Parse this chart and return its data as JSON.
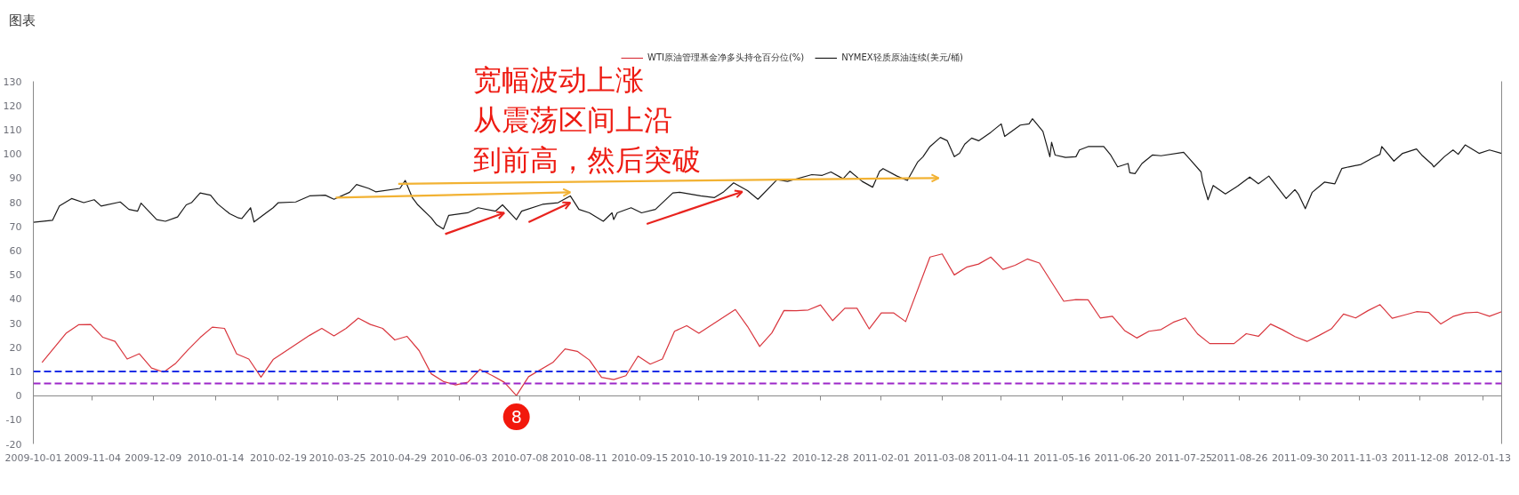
{
  "chart_data": {
    "type": "line",
    "title": "图表",
    "annotations": [
      "宽幅波动上涨",
      "从震荡区间上沿",
      "到前高，然后突破",
      {
        "text": "8",
        "x": "2010-07-06",
        "y": 0
      }
    ],
    "xlim": [
      "2009-10-01",
      "2012-01-24"
    ],
    "xticks": [
      "2009-10-01",
      "2009-11-04",
      "2009-12-09",
      "2010-01-14",
      "2010-02-19",
      "2010-03-25",
      "2010-04-29",
      "2010-06-03",
      "2010-07-08",
      "2010-08-11",
      "2010-09-15",
      "2010-10-19",
      "2010-11-22",
      "2010-12-28",
      "2011-02-01",
      "2011-03-08",
      "2011-04-11",
      "2011-05-16",
      "2011-06-20",
      "2011-07-25",
      "2011-08-26",
      "2011-09-30",
      "2011-11-03",
      "2011-12-08",
      "2012-01-13"
    ],
    "ylim": [
      -20,
      130
    ],
    "yticks": [
      -20,
      -10,
      0,
      10,
      20,
      30,
      40,
      50,
      60,
      70,
      80,
      90,
      100,
      110,
      120,
      130
    ],
    "legend": "top",
    "ref_lines": [
      {
        "axis": "y",
        "value": 10,
        "color": "#1a2ee6",
        "line_style": "dashed"
      },
      {
        "axis": "y",
        "value": 5,
        "color": "#9b27c8",
        "line_style": "dashed"
      }
    ],
    "series": [
      {
        "name": "WTI原油管理基金净多头持仓百分位(%)",
        "color": "#d9363e",
        "x": [
          "2009-10-06",
          "2009-10-20",
          "2009-10-27",
          "2009-11-03",
          "2009-11-10",
          "2009-11-17",
          "2009-11-24",
          "2009-12-01",
          "2009-12-08",
          "2009-12-15",
          "2009-12-22",
          "2009-12-29",
          "2010-01-05",
          "2010-01-12",
          "2010-01-19",
          "2010-01-26",
          "2010-02-02",
          "2010-02-09",
          "2010-02-16",
          "2010-03-09",
          "2010-03-16",
          "2010-03-23",
          "2010-03-30",
          "2010-04-06",
          "2010-04-13",
          "2010-04-20",
          "2010-04-27",
          "2010-05-04",
          "2010-05-11",
          "2010-05-18",
          "2010-05-25",
          "2010-06-01",
          "2010-06-08",
          "2010-06-15",
          "2010-06-22",
          "2010-06-29",
          "2010-07-06",
          "2010-07-13",
          "2010-07-27",
          "2010-08-03",
          "2010-08-10",
          "2010-08-17",
          "2010-08-24",
          "2010-08-31",
          "2010-09-07",
          "2010-09-14",
          "2010-09-21",
          "2010-09-28",
          "2010-10-05",
          "2010-10-12",
          "2010-10-19",
          "2010-11-09",
          "2010-11-16",
          "2010-11-23",
          "2010-11-30",
          "2010-12-07",
          "2010-12-14",
          "2010-12-21",
          "2010-12-28",
          "2011-01-04",
          "2011-01-11",
          "2011-01-18",
          "2011-01-25",
          "2011-02-01",
          "2011-02-08",
          "2011-02-15",
          "2011-03-01",
          "2011-03-08",
          "2011-03-15",
          "2011-03-22",
          "2011-03-29",
          "2011-04-05",
          "2011-04-12",
          "2011-04-19",
          "2011-04-26",
          "2011-05-03",
          "2011-05-17",
          "2011-05-24",
          "2011-05-31",
          "2011-06-07",
          "2011-06-14",
          "2011-06-21",
          "2011-06-28",
          "2011-07-05",
          "2011-07-12",
          "2011-07-19",
          "2011-07-26",
          "2011-08-02",
          "2011-08-09",
          "2011-08-23",
          "2011-08-30",
          "2011-09-06",
          "2011-09-13",
          "2011-09-20",
          "2011-09-27",
          "2011-10-04",
          "2011-10-11",
          "2011-10-18",
          "2011-10-25",
          "2011-11-01",
          "2011-11-08",
          "2011-11-15",
          "2011-11-22",
          "2011-11-29",
          "2011-12-06",
          "2011-12-13",
          "2011-12-20",
          "2011-12-27",
          "2012-01-03",
          "2012-01-10",
          "2012-01-17",
          "2012-01-24"
        ],
        "values": [
          13.7,
          25.9,
          29.3,
          29.4,
          24.1,
          22.4,
          15.1,
          17.3,
          11.4,
          9.7,
          13.4,
          18.9,
          24.0,
          28.3,
          27.8,
          17.2,
          15.1,
          7.6,
          14.9,
          24.9,
          27.8,
          24.7,
          27.8,
          32.0,
          29.4,
          27.8,
          23.0,
          24.5,
          18.6,
          9.0,
          5.8,
          4.4,
          5.5,
          10.8,
          8.3,
          5.5,
          0,
          7.8,
          13.7,
          19.3,
          18.3,
          14.7,
          7.5,
          6.6,
          8.2,
          16.3,
          13.0,
          15.1,
          26.6,
          28.9,
          25.8,
          35.6,
          28.6,
          20.3,
          25.9,
          35.2,
          35.1,
          35.4,
          37.5,
          31.0,
          36.1,
          36.1,
          27.6,
          34.2,
          34.2,
          30.6,
          57.3,
          58.6,
          49.9,
          53.1,
          54.4,
          57.3,
          52.2,
          53.9,
          56.5,
          54.8,
          39.0,
          39.7,
          39.6,
          32.1,
          32.8,
          26.9,
          23.8,
          26.6,
          27.3,
          30.3,
          32.1,
          25.5,
          21.5,
          21.5,
          25.6,
          24.5,
          29.6,
          27.2,
          24.4,
          22.4,
          24.9,
          27.6,
          33.7,
          32.1,
          35.1,
          37.6,
          32.0,
          33.3,
          34.7,
          34.4,
          29.6,
          32.7,
          34.2,
          34.5,
          32.8,
          34.7
        ]
      },
      {
        "name": "NYMEX轻质原油连续(美元/桶)",
        "color": "#1a1a1a",
        "x": [
          "2009-10-01",
          "2009-10-12",
          "2009-10-16",
          "2009-10-23",
          "2009-10-30",
          "2009-11-05",
          "2009-11-09",
          "2009-11-20",
          "2009-11-25",
          "2009-11-30",
          "2009-12-02",
          "2009-12-11",
          "2009-12-16",
          "2009-12-23",
          "2009-12-28",
          "2009-12-31",
          "2010-01-05",
          "2010-01-11",
          "2010-01-15",
          "2010-01-22",
          "2010-01-27",
          "2010-01-29",
          "2010-02-03",
          "2010-02-05",
          "2010-02-12",
          "2010-02-16",
          "2010-02-19",
          "2010-03-01",
          "2010-03-09",
          "2010-03-18",
          "2010-03-23",
          "2010-04-01",
          "2010-04-05",
          "2010-04-12",
          "2010-04-16",
          "2010-04-30",
          "2010-05-03",
          "2010-05-07",
          "2010-05-10",
          "2010-05-18",
          "2010-05-21",
          "2010-05-25",
          "2010-05-28",
          "2010-06-08",
          "2010-06-14",
          "2010-06-24",
          "2010-06-28",
          "2010-07-06",
          "2010-07-09",
          "2010-07-21",
          "2010-07-30",
          "2010-08-06",
          "2010-08-11",
          "2010-08-17",
          "2010-08-25",
          "2010-08-30",
          "2010-08-31",
          "2010-09-02",
          "2010-09-10",
          "2010-09-16",
          "2010-09-24",
          "2010-10-04",
          "2010-10-08",
          "2010-10-20",
          "2010-10-28",
          "2010-11-02",
          "2010-11-08",
          "2010-11-16",
          "2010-11-22",
          "2010-12-03",
          "2010-12-09",
          "2010-12-23",
          "2010-12-29",
          "2011-01-03",
          "2011-01-10",
          "2011-01-14",
          "2011-01-21",
          "2011-01-27",
          "2011-01-31",
          "2011-02-02",
          "2011-02-10",
          "2011-02-16",
          "2011-02-22",
          "2011-02-25",
          "2011-03-01",
          "2011-03-07",
          "2011-03-11",
          "2011-03-15",
          "2011-03-18",
          "2011-03-21",
          "2011-03-25",
          "2011-03-29",
          "2011-04-05",
          "2011-04-11",
          "2011-04-13",
          "2011-04-22",
          "2011-04-27",
          "2011-04-29",
          "2011-05-05",
          "2011-05-09",
          "2011-05-10",
          "2011-05-12",
          "2011-05-18",
          "2011-05-24",
          "2011-05-26",
          "2011-05-31",
          "2011-06-09",
          "2011-06-13",
          "2011-06-17",
          "2011-06-23",
          "2011-06-24",
          "2011-06-27",
          "2011-07-01",
          "2011-07-07",
          "2011-07-12",
          "2011-07-25",
          "2011-07-29",
          "2011-08-04",
          "2011-08-05",
          "2011-08-08",
          "2011-08-11",
          "2011-08-18",
          "2011-08-25",
          "2011-09-01",
          "2011-09-06",
          "2011-09-12",
          "2011-09-16",
          "2011-09-22",
          "2011-09-27",
          "2011-09-29",
          "2011-10-03",
          "2011-10-07",
          "2011-10-12",
          "2011-10-14",
          "2011-10-20",
          "2011-10-24",
          "2011-10-28",
          "2011-11-04",
          "2011-11-11",
          "2011-11-15",
          "2011-11-16",
          "2011-11-23",
          "2011-11-28",
          "2011-12-06",
          "2011-12-09",
          "2011-12-15",
          "2011-12-16",
          "2011-12-22",
          "2011-12-27",
          "2011-12-30",
          "2012-01-03",
          "2012-01-11",
          "2012-01-17",
          "2012-01-24"
        ],
        "values": [
          71.7,
          72.5,
          78.4,
          81.5,
          79.8,
          81.0,
          78.4,
          80.1,
          77.0,
          76.3,
          79.6,
          72.8,
          72.1,
          73.9,
          78.9,
          79.8,
          83.8,
          82.9,
          79.3,
          75.2,
          73.5,
          73.2,
          77.7,
          71.8,
          75.6,
          77.7,
          79.8,
          80.1,
          82.6,
          82.9,
          81.2,
          84.1,
          87.3,
          85.7,
          84.3,
          85.7,
          89.0,
          82.0,
          79.1,
          73.5,
          70.7,
          68.9,
          74.5,
          75.6,
          77.7,
          76.3,
          78.9,
          72.8,
          76.3,
          79.1,
          79.8,
          82.6,
          77.0,
          75.6,
          72.1,
          75.6,
          72.8,
          75.6,
          77.7,
          75.6,
          77.0,
          83.8,
          84.1,
          82.6,
          81.9,
          84.1,
          88.0,
          84.8,
          81.2,
          89.3,
          88.6,
          91.4,
          91.1,
          92.5,
          89.7,
          92.8,
          88.6,
          86.2,
          92.8,
          93.9,
          90.8,
          89.0,
          96.7,
          98.8,
          103.0,
          106.8,
          105.4,
          98.8,
          100.2,
          104.0,
          106.5,
          105.4,
          108.9,
          112.4,
          107.2,
          111.9,
          112.4,
          114.5,
          109.3,
          98.8,
          104.8,
          99.5,
          98.5,
          98.8,
          101.6,
          103.0,
          103.0,
          99.5,
          94.6,
          96.0,
          92.2,
          91.8,
          96.0,
          99.5,
          99.2,
          100.6,
          97.4,
          92.5,
          88.3,
          81.0,
          86.9,
          83.4,
          86.6,
          90.4,
          87.6,
          90.8,
          87.1,
          81.5,
          85.2,
          83.4,
          77.3,
          84.1,
          87.1,
          88.3,
          87.6,
          93.9,
          94.6,
          95.6,
          98.4,
          99.8,
          103.0,
          97.0,
          100.2,
          102.0,
          99.5,
          95.6,
          94.6,
          98.8,
          101.6,
          99.8,
          103.7,
          100.2,
          101.6,
          100.2
        ]
      },
      {
        "type": "line",
        "color": "#f2b233",
        "x": [
          "2010-03-24",
          "2010-08-06"
        ],
        "values": [
          81.9,
          84.1
        ]
      },
      {
        "type": "line",
        "color": "#f2b233",
        "x": [
          "2010-04-29",
          "2011-03-06"
        ],
        "values": [
          87.6,
          90.0
        ]
      },
      {
        "type": "line",
        "color": "#e8231e",
        "x": [
          "2010-05-26",
          "2010-06-29"
        ],
        "values": [
          66.8,
          75.6
        ]
      },
      {
        "type": "line",
        "color": "#e8231e",
        "x": [
          "2010-07-13",
          "2010-08-06"
        ],
        "values": [
          71.7,
          79.8
        ]
      },
      {
        "type": "line",
        "color": "#e8231e",
        "x": [
          "2010-09-19",
          "2010-11-13"
        ],
        "values": [
          71.0,
          84.3
        ]
      }
    ]
  }
}
